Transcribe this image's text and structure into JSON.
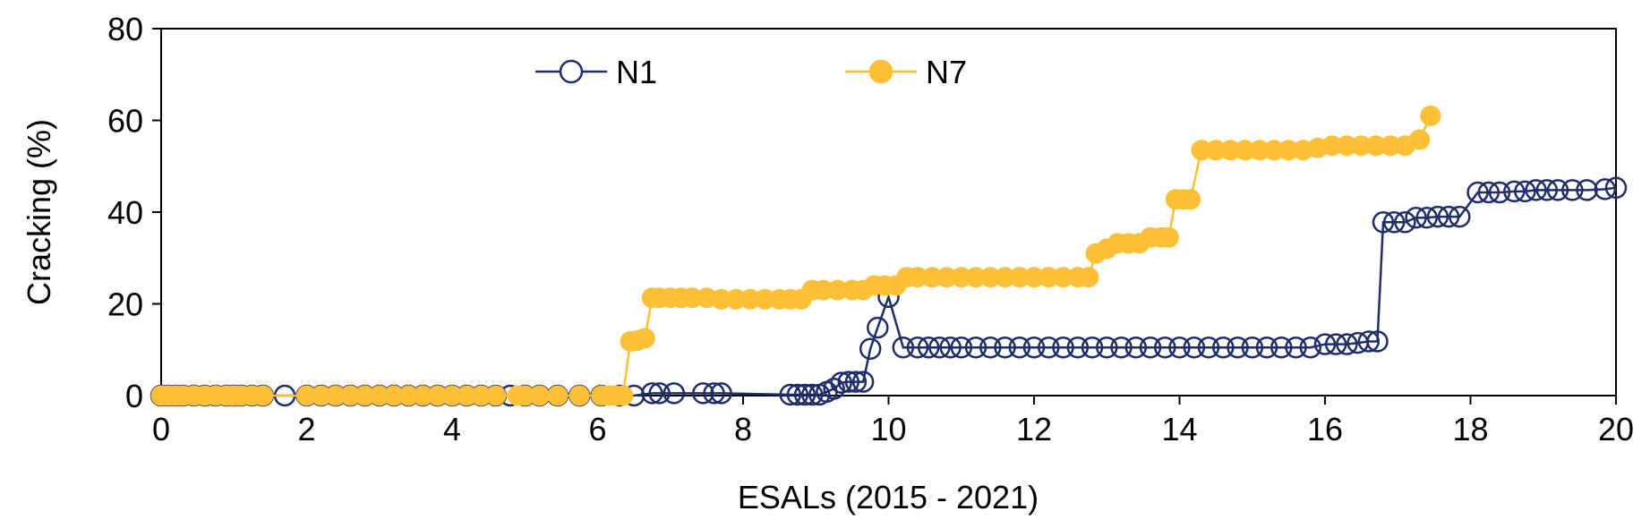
{
  "chart_data": {
    "type": "scatter",
    "title": "",
    "xlabel": "ESALs (2015 - 2021)",
    "ylabel": "Cracking (%)",
    "xlim": [
      0,
      20
    ],
    "ylim": [
      0,
      80
    ],
    "xticks": [
      0,
      2,
      4,
      6,
      8,
      10,
      12,
      14,
      16,
      18,
      20
    ],
    "yticks": [
      0,
      20,
      40,
      60,
      80
    ],
    "grid": false,
    "legend": "top-center",
    "series": [
      {
        "name": "N1",
        "color": "#1f2d6b",
        "marker": "open-circle",
        "x": [
          0,
          0.1,
          0.2,
          0.3,
          0.45,
          0.6,
          0.75,
          0.9,
          1.0,
          1.1,
          1.25,
          1.4,
          1.7,
          2.0,
          2.2,
          2.4,
          2.6,
          2.8,
          3.0,
          3.2,
          3.4,
          3.6,
          3.8,
          4.0,
          4.2,
          4.4,
          4.6,
          4.8,
          5.0,
          5.2,
          5.45,
          5.75,
          6.05,
          6.3,
          6.5,
          6.75,
          6.85,
          7.05,
          7.45,
          7.6,
          7.7,
          8.65,
          8.75,
          8.85,
          8.95,
          9.05,
          9.15,
          9.25,
          9.35,
          9.45,
          9.55,
          9.65,
          9.75,
          9.85,
          10.0,
          10.2,
          10.4,
          10.55,
          10.7,
          10.85,
          11.0,
          11.2,
          11.4,
          11.6,
          11.8,
          12.0,
          12.2,
          12.4,
          12.6,
          12.8,
          13.0,
          13.2,
          13.4,
          13.6,
          13.8,
          14.0,
          14.2,
          14.4,
          14.6,
          14.8,
          15.0,
          15.2,
          15.4,
          15.6,
          15.8,
          16.0,
          16.15,
          16.3,
          16.45,
          16.6,
          16.72,
          16.8,
          16.95,
          17.1,
          17.25,
          17.4,
          17.55,
          17.7,
          17.85,
          18.1,
          18.25,
          18.4,
          18.6,
          18.75,
          18.9,
          19.05,
          19.2,
          19.4,
          19.6,
          19.85,
          20.0
        ],
        "y": [
          0,
          0,
          0,
          0,
          0,
          0,
          0,
          0,
          0,
          0,
          0,
          0,
          0,
          0,
          0,
          0,
          0,
          0,
          0,
          0,
          0,
          0,
          0,
          0,
          0,
          0,
          0,
          0,
          0,
          0,
          0,
          0,
          0,
          0,
          0,
          0.5,
          0.5,
          0.5,
          0.5,
          0.5,
          0.5,
          0.2,
          0.2,
          0.2,
          0.2,
          0.2,
          0.8,
          1.5,
          2.8,
          3.0,
          3.0,
          3.0,
          10.2,
          14.8,
          21.5,
          10.5,
          10.5,
          10.5,
          10.5,
          10.5,
          10.5,
          10.5,
          10.5,
          10.5,
          10.5,
          10.5,
          10.5,
          10.5,
          10.5,
          10.5,
          10.5,
          10.5,
          10.5,
          10.5,
          10.5,
          10.5,
          10.5,
          10.5,
          10.5,
          10.5,
          10.5,
          10.5,
          10.5,
          10.5,
          10.5,
          11.2,
          11.2,
          11.2,
          11.5,
          11.8,
          11.8,
          37.8,
          37.8,
          37.8,
          38.8,
          38.8,
          39.0,
          39.0,
          39.0,
          44.3,
          44.3,
          44.3,
          44.5,
          44.5,
          44.8,
          44.8,
          44.8,
          44.8,
          44.8,
          45.0,
          45.3
        ]
      },
      {
        "name": "N7",
        "color": "#fbc037",
        "marker": "filled-circle",
        "x": [
          0,
          0.1,
          0.2,
          0.3,
          0.45,
          0.6,
          0.75,
          0.9,
          1.0,
          1.1,
          1.25,
          1.4,
          2.0,
          2.2,
          2.4,
          2.6,
          2.8,
          3.0,
          3.2,
          3.4,
          3.6,
          3.8,
          4.0,
          4.2,
          4.4,
          4.6,
          4.9,
          5.0,
          5.2,
          5.45,
          5.75,
          6.05,
          6.15,
          6.25,
          6.35,
          6.45,
          6.55,
          6.65,
          6.75,
          6.85,
          7.0,
          7.15,
          7.3,
          7.5,
          7.7,
          7.9,
          8.1,
          8.3,
          8.5,
          8.65,
          8.8,
          8.95,
          9.1,
          9.3,
          9.5,
          9.65,
          9.8,
          9.95,
          10.1,
          10.25,
          10.4,
          10.6,
          10.8,
          11.0,
          11.2,
          11.4,
          11.6,
          11.8,
          12.0,
          12.2,
          12.4,
          12.6,
          12.75,
          12.85,
          13.0,
          13.15,
          13.3,
          13.45,
          13.6,
          13.75,
          13.85,
          13.95,
          14.05,
          14.15,
          14.3,
          14.5,
          14.7,
          14.9,
          15.1,
          15.3,
          15.5,
          15.7,
          15.9,
          16.1,
          16.3,
          16.5,
          16.7,
          16.9,
          17.1,
          17.3,
          17.45
        ],
        "y": [
          0,
          0,
          0,
          0,
          0,
          0,
          0,
          0,
          0,
          0,
          0,
          0,
          0,
          0,
          0,
          0,
          0,
          0,
          0,
          0,
          0,
          0,
          0,
          0,
          0,
          0,
          0,
          0,
          0,
          0,
          0,
          0,
          0,
          0,
          0,
          11.8,
          12.0,
          12.5,
          21.3,
          21.3,
          21.3,
          21.3,
          21.3,
          21.3,
          21.0,
          21.0,
          21.0,
          21.0,
          21.0,
          21.0,
          21.0,
          23.0,
          23.0,
          23.0,
          23.0,
          23.0,
          24.0,
          24.0,
          24.0,
          25.8,
          25.8,
          25.8,
          25.8,
          25.8,
          25.8,
          25.8,
          25.8,
          25.8,
          25.8,
          25.8,
          25.8,
          25.8,
          25.8,
          31.0,
          32.0,
          33.2,
          33.2,
          33.2,
          34.5,
          34.5,
          34.5,
          42.8,
          42.8,
          42.8,
          53.5,
          53.5,
          53.5,
          53.5,
          53.5,
          53.5,
          53.5,
          53.5,
          54.0,
          54.5,
          54.5,
          54.5,
          54.5,
          54.5,
          54.5,
          55.8,
          61.0
        ]
      }
    ]
  }
}
